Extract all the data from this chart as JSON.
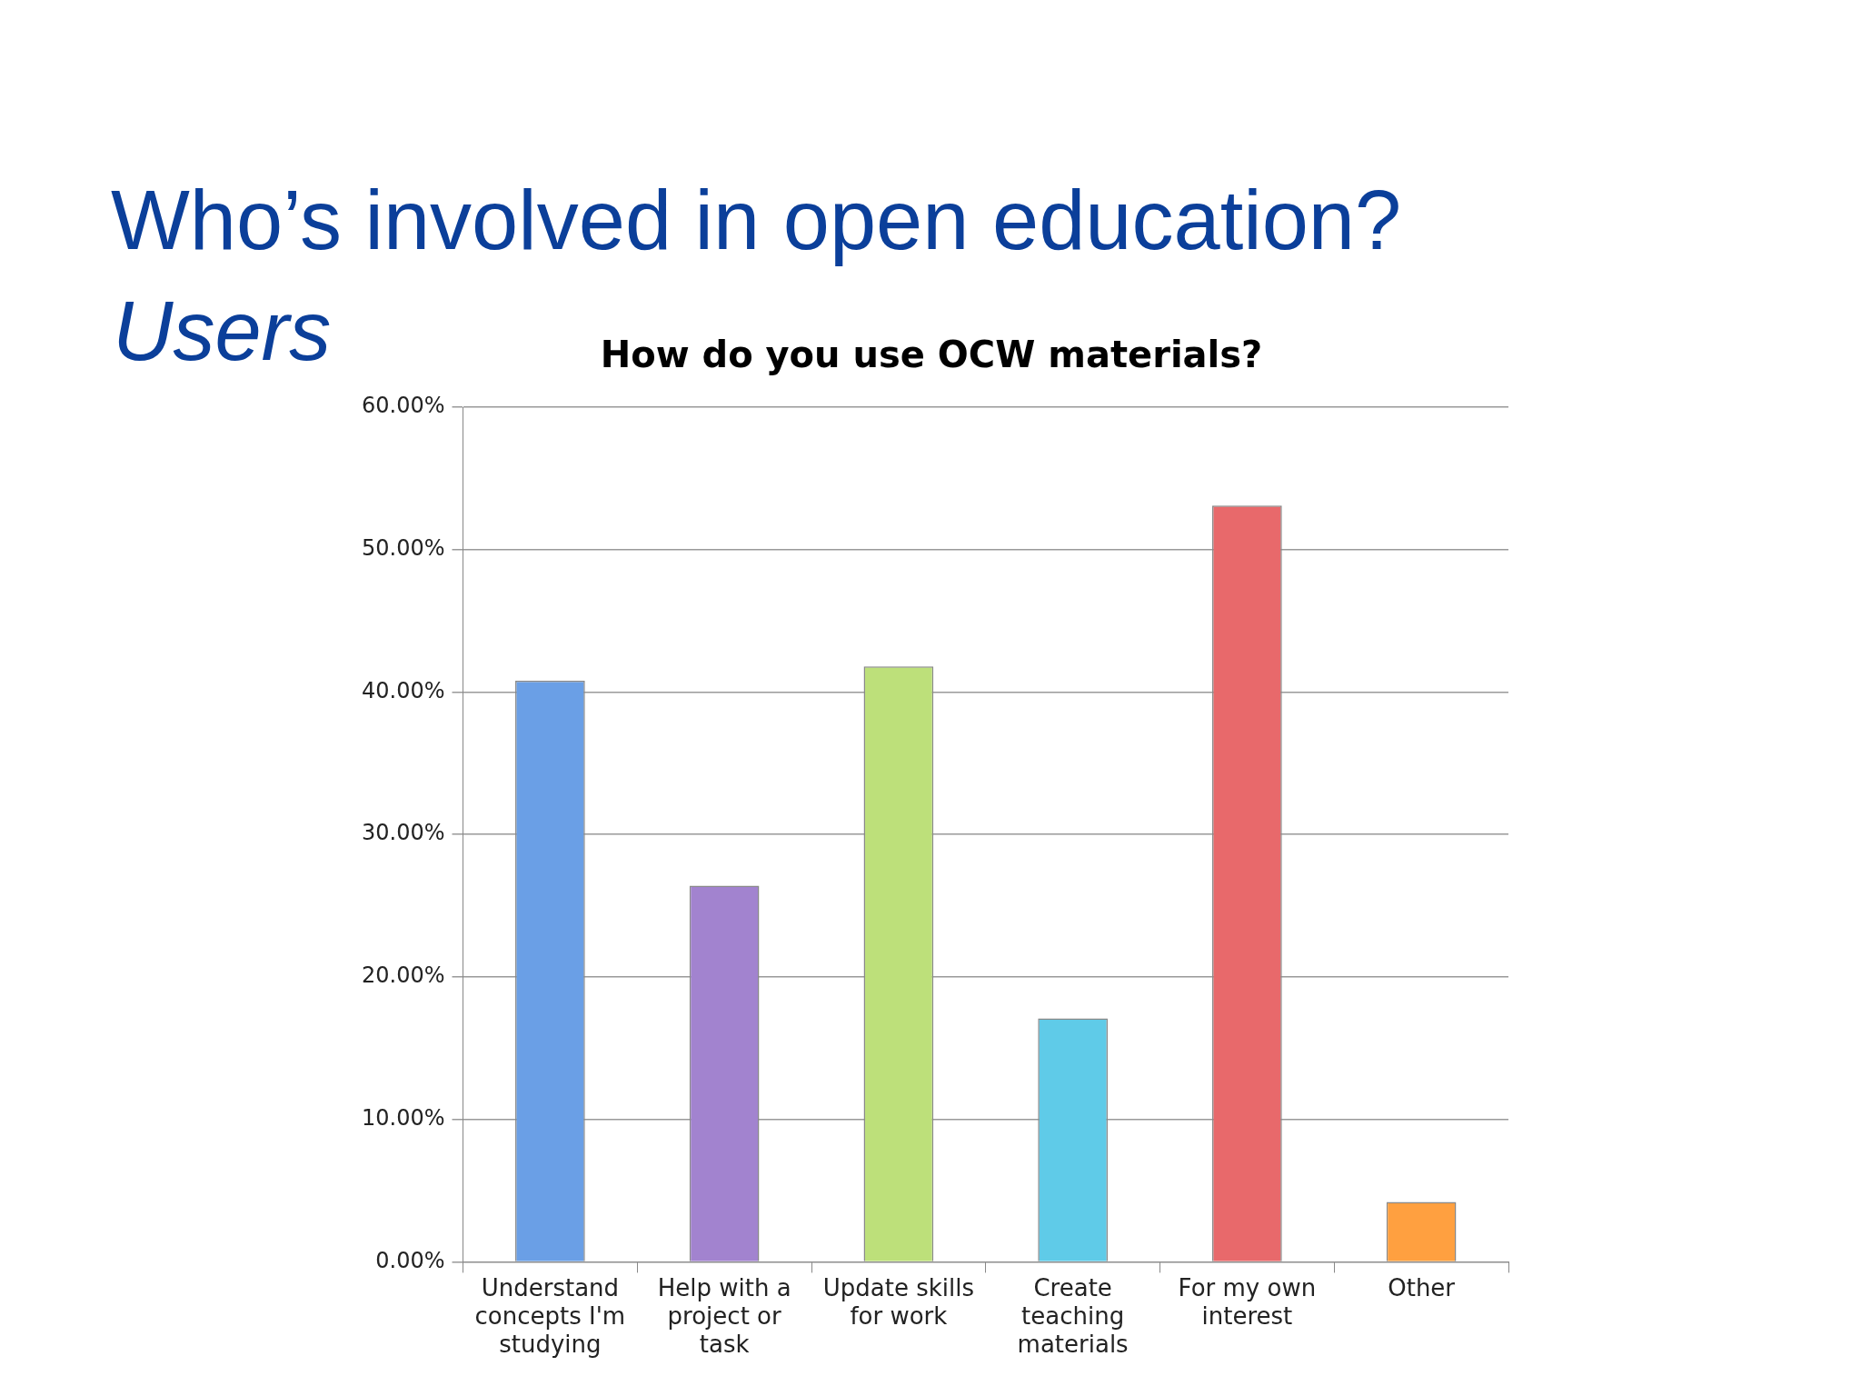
{
  "chart_data": {
    "type": "bar",
    "title": "How do you use OCW materials?",
    "annotations": [
      "Who’s involved in open education?",
      "Users"
    ],
    "categories": [
      "Understand concepts I'm studying",
      "Help with a project or task",
      "Update skills for work",
      "Create teaching materials",
      "For my own interest",
      "Other"
    ],
    "values": [
      40.8,
      26.4,
      41.8,
      17.1,
      53.1,
      4.2
    ],
    "colors": [
      "#6a9fe6",
      "#a283cf",
      "#bde07a",
      "#5fcbe8",
      "#e8696b",
      "#ffa040"
    ],
    "ylim": [
      0,
      60
    ],
    "yticks": [
      {
        "value": 0,
        "label": "0.00%"
      },
      {
        "value": 10,
        "label": "10.00%"
      },
      {
        "value": 20,
        "label": "20.00%"
      },
      {
        "value": 30,
        "label": "30.00%"
      },
      {
        "value": 40,
        "label": "40.00%"
      },
      {
        "value": 50,
        "label": "50.00%"
      },
      {
        "value": 60,
        "label": "60.00%"
      }
    ],
    "grid": "y",
    "legend": false
  }
}
